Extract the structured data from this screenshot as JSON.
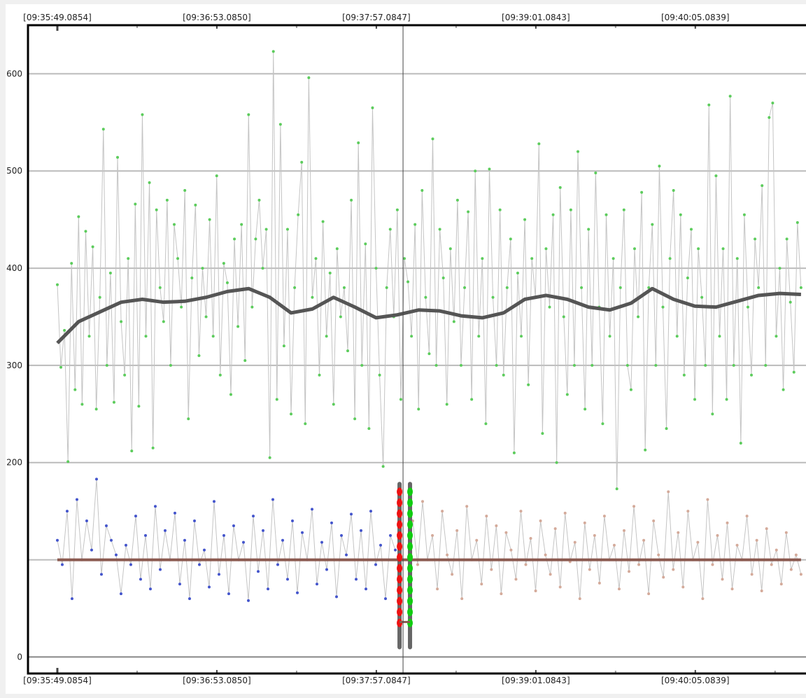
{
  "chart_data": {
    "type": "line",
    "title": "",
    "xlabel": "",
    "ylabel": "",
    "x_tick_labels": [
      "[09:35:49.0854]",
      "[09:36:53.0850]",
      "[09:37:57.0847]",
      "[09:39:01.0843]",
      "[09:40:05.0839]"
    ],
    "x_ticks": [
      "09:35:49.0854",
      "09:36:53.0850",
      "09:37:57.0847",
      "09:39:01.0843",
      "09:40:05.0839"
    ],
    "xlim": [
      "09:35:37.3",
      "09:40:49.5"
    ],
    "ylim": [
      -17,
      650
    ],
    "y_ticks": [
      0,
      100,
      200,
      300,
      400,
      500,
      600
    ],
    "y_tick_labels": [
      "0",
      "",
      "200",
      "300",
      "400",
      "500",
      "600"
    ],
    "grid": true,
    "cursor_time": "09:38:07.8",
    "colors": {
      "upper_points": "#5ccc5c",
      "lower_left_points": "#4455cc",
      "lower_right_points": "#d4aa9a",
      "connector": "#c4c4c4",
      "trend": "#555555",
      "baseline": "#8b5a50",
      "marker_red": "#ee1111",
      "marker_green": "#11cc11",
      "marker_bar": "#666666"
    },
    "series": [
      {
        "id": "upper",
        "color_key": "upper_points",
        "time_range": [
          "09:35:49.0854",
          "09:40:47.5"
        ],
        "values": [
          383,
          298,
          336,
          201,
          405,
          275,
          453,
          260,
          438,
          330,
          422,
          255,
          370,
          543,
          300,
          395,
          262,
          514,
          345,
          290,
          410,
          212,
          466,
          258,
          558,
          330,
          488,
          215,
          460,
          380,
          345,
          470,
          300,
          445,
          410,
          360,
          480,
          245,
          390,
          465,
          310,
          400,
          350,
          450,
          330,
          495,
          290,
          405,
          385,
          270,
          430,
          340,
          445,
          305,
          558,
          360,
          430,
          470,
          400,
          440,
          205,
          623,
          265,
          548,
          320,
          440,
          250,
          380,
          455,
          509,
          240,
          596,
          370,
          410,
          290,
          448,
          330,
          395,
          260,
          420,
          350,
          380,
          315,
          470,
          245,
          529,
          300,
          425,
          235,
          565,
          400,
          290,
          196,
          380,
          440,
          350,
          460,
          265,
          410,
          386,
          330,
          445,
          255,
          480,
          370,
          312,
          533,
          300,
          440,
          390,
          260,
          420,
          345,
          470,
          300,
          380,
          458,
          265,
          500,
          330,
          410,
          240,
          502,
          370,
          300,
          460,
          290,
          380,
          430,
          210,
          395,
          330,
          450,
          280,
          410,
          370,
          528,
          230,
          420,
          360,
          455,
          200,
          483,
          350,
          270,
          460,
          300,
          520,
          380,
          255,
          440,
          300,
          498,
          360,
          240,
          455,
          330,
          410,
          173,
          380,
          460,
          300,
          275,
          420,
          350,
          478,
          213,
          380,
          445,
          300,
          505,
          360,
          235,
          410,
          480,
          330,
          455,
          290,
          390,
          440,
          265,
          420,
          370,
          300,
          568,
          250,
          495,
          330,
          420,
          265,
          577,
          300,
          410,
          220,
          455,
          360,
          290,
          430,
          380,
          485,
          300,
          555,
          570,
          330,
          400,
          275,
          430,
          365,
          293,
          447,
          380
        ]
      },
      {
        "id": "lower-left",
        "color_key": "lower_left_points",
        "time_range": [
          "09:35:49.0854",
          "09:38:04.7"
        ],
        "values": [
          120,
          95,
          150,
          60,
          162,
          100,
          140,
          110,
          183,
          85,
          135,
          120,
          105,
          65,
          115,
          95,
          145,
          80,
          125,
          70,
          155,
          90,
          130,
          100,
          148,
          75,
          120,
          60,
          140,
          95,
          110,
          72,
          160,
          85,
          125,
          65,
          135,
          100,
          118,
          58,
          145,
          88,
          130,
          70,
          162,
          95,
          120,
          80,
          140,
          66,
          128,
          100,
          152,
          75,
          118,
          90,
          138,
          62,
          125,
          105,
          147,
          80,
          130,
          70,
          150,
          95,
          115,
          60,
          125,
          110
        ]
      },
      {
        "id": "lower-right",
        "color_key": "lower_right_points",
        "time_range": [
          "09:38:11.7",
          "09:40:47.5"
        ],
        "values": [
          140,
          95,
          160,
          100,
          125,
          70,
          150,
          105,
          85,
          130,
          60,
          155,
          100,
          120,
          75,
          145,
          90,
          135,
          65,
          128,
          110,
          80,
          150,
          95,
          122,
          68,
          140,
          105,
          85,
          132,
          72,
          148,
          98,
          118,
          60,
          138,
          90,
          125,
          76,
          145,
          100,
          115,
          70,
          130,
          88,
          155,
          95,
          120,
          65,
          140,
          105,
          82,
          170,
          90,
          128,
          72,
          150,
          100,
          118,
          60,
          162,
          95,
          125,
          80,
          138,
          70,
          115,
          100,
          145,
          85,
          120,
          68,
          132,
          95,
          110,
          75,
          128,
          90,
          105,
          85
        ]
      }
    ],
    "trend": {
      "time_range": [
        "09:35:49.0854",
        "09:40:47.5"
      ],
      "values": [
        323,
        345,
        355,
        365,
        368,
        365,
        366,
        370,
        376,
        379,
        370,
        354,
        358,
        370,
        360,
        349,
        352,
        357,
        356,
        351,
        349,
        354,
        368,
        372,
        368,
        360,
        357,
        364,
        379,
        368,
        361,
        360,
        366,
        372,
        374,
        373
      ]
    },
    "baseline_value": 100,
    "markers": [
      {
        "id": "red-marker",
        "time": "09:38:06.4",
        "bar_range": [
          10,
          178
        ],
        "dot_range": [
          35,
          170
        ],
        "dot_count": 13,
        "color_key": "marker_red"
      },
      {
        "id": "green-marker",
        "time": "09:38:10.6",
        "bar_range": [
          10,
          178
        ],
        "dot_range": [
          35,
          170
        ],
        "dot_count": 13,
        "color_key": "marker_green"
      }
    ],
    "marker_link_value": 36
  }
}
